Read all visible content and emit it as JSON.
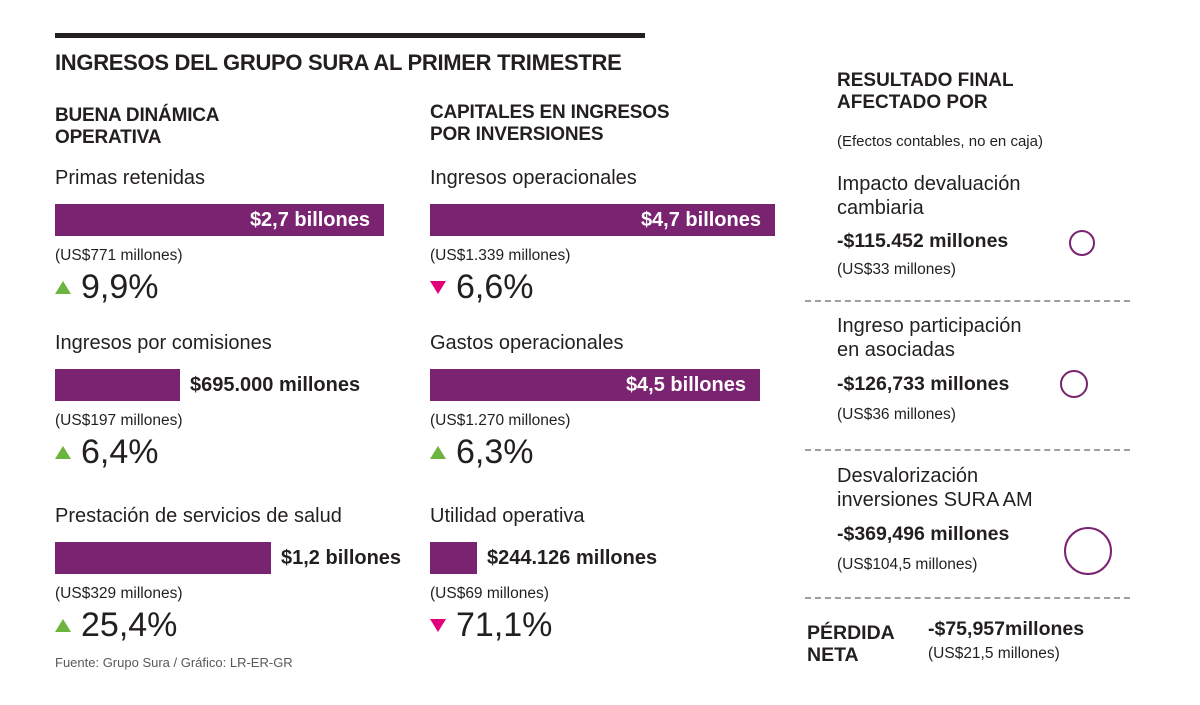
{
  "title": "INGRESOS DEL GRUPO SURA AL PRIMER TRIMESTRE",
  "source": "Fuente: Grupo Sura / Gráfico: LR-ER-GR",
  "colors": {
    "bar": "#7a2371",
    "up": "#6db33f",
    "down": "#e2007a"
  },
  "chart_data": [
    {
      "type": "bar",
      "title": "BUENA DINÁMICA OPERATIVA",
      "categories": [
        "Primas retenidas",
        "Ingresos por comisiones",
        "Prestación de servicios de salud"
      ],
      "values": [
        2700000,
        695000,
        1200000
      ],
      "unit": "millones de pesos",
      "labels": [
        "$2,7 billones",
        "$695.000 millones",
        "$1,2 billones"
      ],
      "usd": [
        "(US$771 millones)",
        "(US$197 millones)",
        "(US$329 millones)"
      ],
      "change": [
        "9,9%",
        "6,4%",
        "25,4%"
      ],
      "direction": [
        "up",
        "up",
        "up"
      ],
      "label_inside": [
        true,
        false,
        false
      ]
    },
    {
      "type": "bar",
      "title": "CAPITALES EN INGRESOS POR INVERSIONES",
      "categories": [
        "Ingresos operacionales",
        "Gastos operacionales",
        "Utilidad operativa"
      ],
      "values": [
        4700000,
        4500000,
        244126
      ],
      "unit": "millones de pesos",
      "labels": [
        "$4,7 billones",
        "$4,5 billones",
        "$244.126 millones"
      ],
      "usd": [
        "(US$1.339 millones)",
        "(US$1.270 millones)",
        "(US$69 millones)"
      ],
      "change": [
        "6,6%",
        "6,3%",
        "71,1%"
      ],
      "direction": [
        "down",
        "up",
        "down"
      ],
      "label_inside": [
        true,
        true,
        false
      ]
    }
  ],
  "result": {
    "title_line1": "RESULTADO FINAL",
    "title_line2": "AFECTADO POR",
    "subtitle": "(Efectos contables, no en caja)",
    "impacts": [
      {
        "label_line1": "Impacto devaluación",
        "label_line2": "cambiaria",
        "value": "-$115.452 millones",
        "usd": "(US$33 millones)",
        "amount": 115452
      },
      {
        "label_line1": "Ingreso participación",
        "label_line2": "en asociadas",
        "value": "-$126,733 millones",
        "usd": "(US$36 millones)",
        "amount": 126733
      },
      {
        "label_line1": "Desvalorización",
        "label_line2": "inversiones SURA AM",
        "value": "-$369,496 millones",
        "usd": "(US$104,5 millones)",
        "amount": 369496
      }
    ],
    "net_label_line1": "PÉRDIDA",
    "net_label_line2": "NETA",
    "net_value": "-$75,957millones",
    "net_usd": "(US$21,5 millones)"
  }
}
